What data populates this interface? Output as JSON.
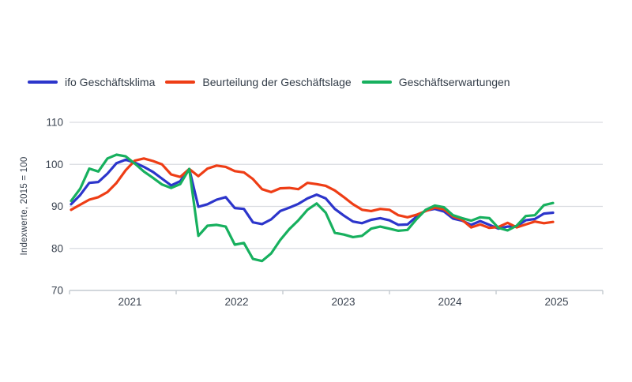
{
  "legend": {
    "items": [
      {
        "label": "ifo Geschäftsklima"
      },
      {
        "label": "Beurteilung der Geschäftslage"
      },
      {
        "label": "Geschäftserwartungen"
      }
    ]
  },
  "colors": {
    "background": "#ffffff",
    "grid": "#d9dce0",
    "axis": "#c4cad0",
    "tick_text": "#3a4350",
    "label_text": "#333d49",
    "series_klima": "#2c35cb",
    "series_lage": "#ee3d15",
    "series_erwartungen": "#17b05e"
  },
  "chart_data": {
    "type": "line",
    "title": "",
    "xlabel": "",
    "ylabel": "Indexwerte, 2015 = 100",
    "ylim": [
      70,
      110
    ],
    "y_ticks": [
      110,
      100,
      90,
      80,
      70
    ],
    "x_tick_labels": [
      "2021",
      "2022",
      "2023",
      "2024",
      "2025"
    ],
    "grid": "horizontal",
    "legend_position": "top-left",
    "x_months": [
      "2021-01",
      "2021-02",
      "2021-03",
      "2021-04",
      "2021-05",
      "2021-06",
      "2021-07",
      "2021-08",
      "2021-09",
      "2021-10",
      "2021-11",
      "2021-12",
      "2022-01",
      "2022-02",
      "2022-03",
      "2022-04",
      "2022-05",
      "2022-06",
      "2022-07",
      "2022-08",
      "2022-09",
      "2022-10",
      "2022-11",
      "2022-12",
      "2023-01",
      "2023-02",
      "2023-03",
      "2023-04",
      "2023-05",
      "2023-06",
      "2023-07",
      "2023-08",
      "2023-09",
      "2023-10",
      "2023-11",
      "2023-12",
      "2024-01",
      "2024-02",
      "2024-03",
      "2024-04",
      "2024-05",
      "2024-06",
      "2024-07",
      "2024-08",
      "2024-09",
      "2024-10",
      "2024-11",
      "2024-12",
      "2025-01",
      "2025-02",
      "2025-03",
      "2025-04",
      "2025-05",
      "2025-06"
    ],
    "series": [
      {
        "name": "ifo Geschäftsklima",
        "color": "#2c35cb",
        "values": [
          90.5,
          92.7,
          95.6,
          95.8,
          97.8,
          100.3,
          101.1,
          100.4,
          99.4,
          98.2,
          96.6,
          95.0,
          96.0,
          98.9,
          89.9,
          90.5,
          91.6,
          92.2,
          89.6,
          89.4,
          86.2,
          85.8,
          86.9,
          88.9,
          89.7,
          90.6,
          91.9,
          92.8,
          91.9,
          89.4,
          87.8,
          86.4,
          86.0,
          86.8,
          87.2,
          86.7,
          85.6,
          85.7,
          87.6,
          89.0,
          89.4,
          88.8,
          87.1,
          86.6,
          85.6,
          86.5,
          85.6,
          84.7,
          85.2,
          85.3,
          86.7,
          87.0,
          88.3,
          88.5
        ]
      },
      {
        "name": "Beurteilung der Geschäftslage",
        "color": "#ee3d15",
        "values": [
          89.2,
          90.4,
          91.6,
          92.2,
          93.4,
          95.6,
          98.6,
          100.9,
          101.4,
          100.8,
          100.0,
          97.6,
          97.0,
          98.9,
          97.2,
          99.0,
          99.7,
          99.4,
          98.4,
          98.1,
          96.5,
          94.1,
          93.4,
          94.3,
          94.4,
          94.1,
          95.6,
          95.3,
          94.9,
          93.8,
          92.2,
          90.5,
          89.2,
          88.9,
          89.4,
          89.2,
          87.9,
          87.4,
          88.0,
          88.9,
          89.7,
          89.3,
          87.6,
          86.8,
          85.0,
          85.7,
          84.9,
          85.1,
          86.1,
          85.0,
          85.7,
          86.4,
          86.0,
          86.3
        ]
      },
      {
        "name": "Geschäftserwartungen",
        "color": "#17b05e",
        "values": [
          91.3,
          94.2,
          99.0,
          98.3,
          101.4,
          102.3,
          101.9,
          100.2,
          98.3,
          96.8,
          95.2,
          94.4,
          95.3,
          98.9,
          83.0,
          85.4,
          85.6,
          85.2,
          80.9,
          81.3,
          77.5,
          77.0,
          78.8,
          82.0,
          84.6,
          86.7,
          89.2,
          90.7,
          88.5,
          83.7,
          83.3,
          82.7,
          83.0,
          84.7,
          85.2,
          84.7,
          84.2,
          84.4,
          87.0,
          89.2,
          90.2,
          89.8,
          87.9,
          87.2,
          86.6,
          87.4,
          87.2,
          84.9,
          84.3,
          85.4,
          87.7,
          87.9,
          90.3,
          90.8
        ]
      }
    ]
  }
}
